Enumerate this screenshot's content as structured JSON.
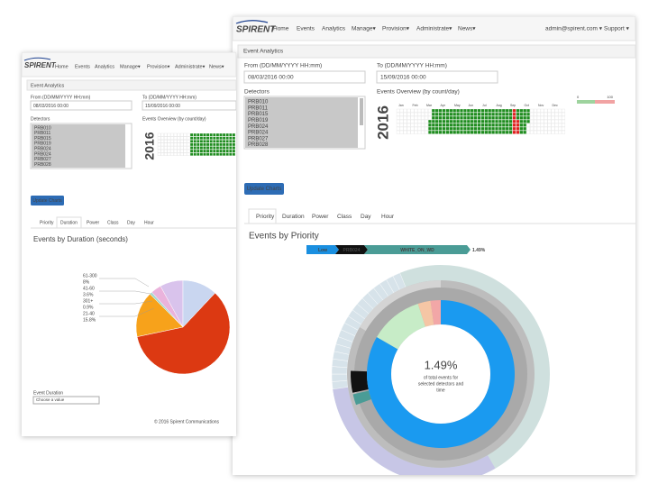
{
  "back": {
    "brand": "SPIRENT",
    "nav": [
      "Home",
      "Events",
      "Analytics",
      "Manage▾",
      "Provision▾",
      "Administrate▾",
      "News▾"
    ],
    "panel_title": "Event Analytics",
    "from_label": "From (DD/MM/YYYY HH:mm)",
    "from_value": "08/03/2016 00:00",
    "to_label": "To (DD/MM/YYYY HH:mm)",
    "to_value": "15/09/2016 00:00",
    "detectors_label": "Detectors",
    "detectors": [
      "PRB010",
      "PRB011",
      "PRB015",
      "PRB019",
      "PRB024",
      "PRB024",
      "PRB027",
      "PRB028"
    ],
    "overview_label": "Events Overview (by count/day)",
    "year": "2016",
    "button": "Update Charts",
    "tabs": [
      "Priority",
      "Duration",
      "Power",
      "Class",
      "Day",
      "Hour"
    ],
    "chart_data": {
      "type": "pie",
      "title": "Events by Duration (seconds)",
      "categories": [
        "61-300",
        "41-60",
        "301+",
        "21-40",
        null,
        null
      ],
      "values": [
        8,
        3.6,
        0.9,
        15.8,
        59.7,
        12
      ],
      "value_labels": [
        "8%",
        "3.6%",
        "0.9%",
        "15.8%",
        null,
        null
      ],
      "colors": [
        "#d9c3ec",
        "#eab3dc",
        "#a8d8d0",
        "#f7a21b",
        "#dc3912",
        "#c9d6f0"
      ]
    },
    "filter_label": "Event Duration",
    "filter_value": "Choose a value",
    "footer": "© 2016 Spirent Communications"
  },
  "front": {
    "brand": "SPIRENT",
    "nav": [
      "Home",
      "Events",
      "Analytics",
      "Manage▾",
      "Provision▾",
      "Administrate▾",
      "News▾"
    ],
    "user": "admin@spirent.com ▾",
    "support": "Support ▾",
    "panel_title": "Event Analytics",
    "from_label": "From (DD/MM/YYYY HH:mm)",
    "from_value": "08/03/2016 00:00",
    "to_label": "To (DD/MM/YYYY HH:mm)",
    "to_value": "15/09/2016 00:00",
    "detectors_label": "Detectors",
    "detectors": [
      "PRB010",
      "PRB011",
      "PRB015",
      "PRB019",
      "PRB024",
      "PRB024",
      "PRB027",
      "PRB028"
    ],
    "overview_label": "Events Overview (by count/day)",
    "year": "2016",
    "months": [
      "Jan",
      "Feb",
      "Mar",
      "Apr",
      "May",
      "Jun",
      "Jul",
      "Aug",
      "Sep",
      "Oct",
      "Nov",
      "Dec"
    ],
    "scale_min": "0",
    "scale_max": "100",
    "button": "Update Charts",
    "tabs": [
      "Priority",
      "Duration",
      "Power",
      "Class",
      "Day",
      "Hour"
    ],
    "chart_title": "Events by Priority",
    "breadcrumb": [
      "Low",
      "PRB024",
      "WHITE_ON_WD"
    ],
    "breadcrumb_percent": "1.49%",
    "center_percent": "1.49%",
    "center_caption": [
      "of total events for",
      "selected detectors and",
      "time"
    ]
  }
}
